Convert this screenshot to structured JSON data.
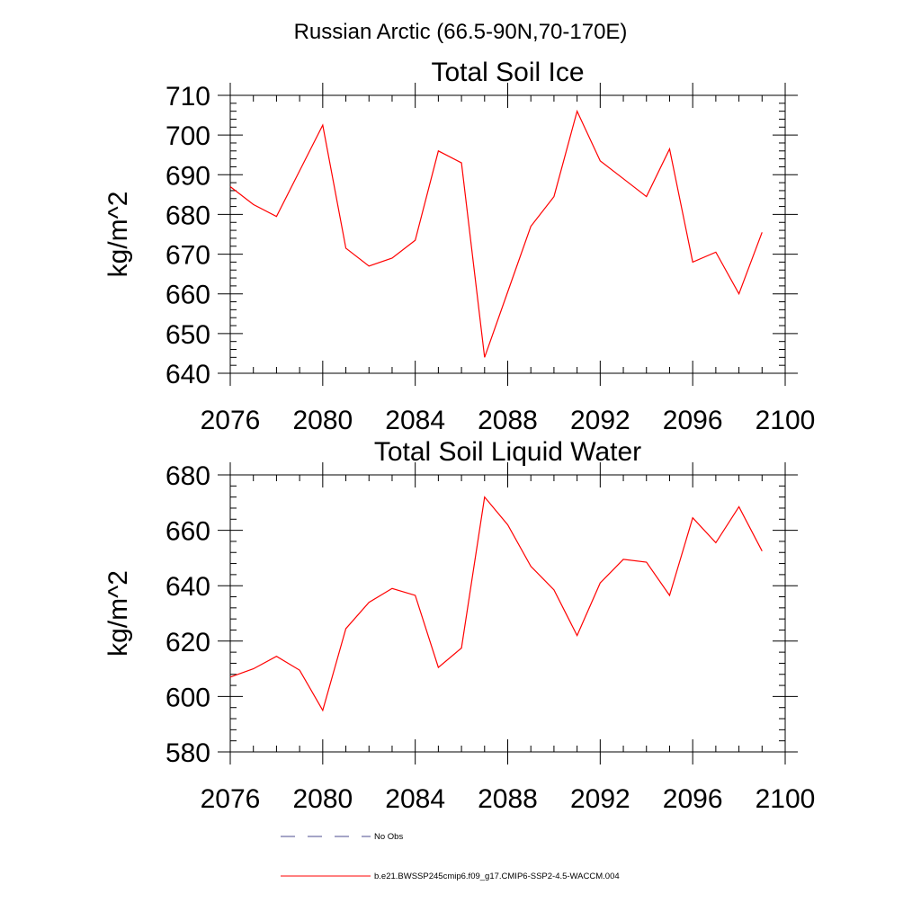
{
  "suptitle": "Russian Arctic (66.5-90N,70-170E)",
  "colors": {
    "model_line": "#ff0000",
    "obs_line": "#4b4b8f",
    "axis": "#000000"
  },
  "legend": {
    "placement": "bottom-center",
    "entries": [
      {
        "label": "No Obs",
        "style": "dashed",
        "color": "#4b4b8f"
      },
      {
        "label": "b.e21.BWSSP245cmip6.f09_g17.CMIP6-SSP2-4.5-WACCM.004",
        "style": "solid",
        "color": "#ff0000"
      }
    ]
  },
  "chart_data": [
    {
      "type": "line",
      "title": "Total Soil Ice",
      "xlabel": "",
      "ylabel": "kg/m^2",
      "xlim": [
        2076,
        2100
      ],
      "ylim": [
        640,
        710
      ],
      "xticks": [
        2076,
        2080,
        2084,
        2088,
        2092,
        2096,
        2100
      ],
      "yticks": [
        640,
        650,
        660,
        670,
        680,
        690,
        700,
        710
      ],
      "grid": false,
      "x": [
        2076,
        2077,
        2078,
        2079,
        2080,
        2081,
        2082,
        2083,
        2084,
        2085,
        2086,
        2087,
        2088,
        2089,
        2090,
        2091,
        2092,
        2093,
        2094,
        2095,
        2096,
        2097,
        2098,
        2099
      ],
      "series": [
        {
          "values": [
            687,
            682.5,
            679.5,
            691,
            702.5,
            671.5,
            667,
            669,
            673.5,
            696,
            693,
            644,
            660.5,
            677,
            684.5,
            706,
            693.5,
            689,
            684.5,
            696.5,
            668,
            670.5,
            660,
            675.5
          ]
        }
      ]
    },
    {
      "type": "line",
      "title": "Total Soil Liquid Water",
      "xlabel": "",
      "ylabel": "kg/m^2",
      "xlim": [
        2076,
        2100
      ],
      "ylim": [
        580,
        680
      ],
      "xticks": [
        2076,
        2080,
        2084,
        2088,
        2092,
        2096,
        2100
      ],
      "yticks": [
        580,
        600,
        620,
        640,
        660,
        680
      ],
      "grid": false,
      "x": [
        2076,
        2077,
        2078,
        2079,
        2080,
        2081,
        2082,
        2083,
        2084,
        2085,
        2086,
        2087,
        2088,
        2089,
        2090,
        2091,
        2092,
        2093,
        2094,
        2095,
        2096,
        2097,
        2098,
        2099
      ],
      "series": [
        {
          "values": [
            607,
            610,
            614.5,
            609.5,
            595,
            624.5,
            634,
            639,
            636.5,
            610.5,
            617.5,
            672,
            662,
            647,
            638.5,
            622,
            641,
            649.5,
            648.5,
            636.5,
            664.5,
            655.5,
            668.5,
            652.5
          ]
        }
      ]
    }
  ]
}
